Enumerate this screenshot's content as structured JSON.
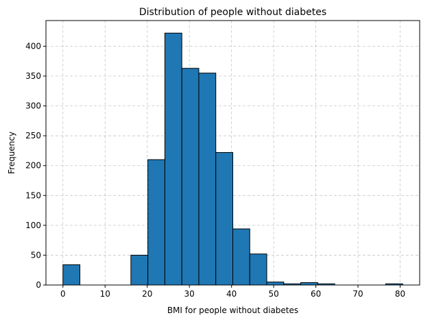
{
  "chart_data": {
    "type": "bar",
    "title": "Distribution of people without diabetes",
    "xlabel": "BMI for people without diabetes",
    "ylabel": "Frequency",
    "bin_edges": [
      0,
      4.03,
      8.06,
      12.09,
      16.12,
      20.15,
      24.18,
      28.21,
      32.24,
      36.27,
      40.3,
      44.33,
      48.36,
      52.39,
      56.42,
      60.45,
      64.48,
      68.51,
      72.54,
      76.57,
      80.6
    ],
    "values": [
      34,
      0,
      0,
      0,
      50,
      210,
      422,
      363,
      355,
      222,
      94,
      52,
      5,
      2,
      4,
      2,
      0,
      0,
      0,
      2
    ],
    "xlim": [
      -4.03,
      84.63
    ],
    "ylim": [
      0,
      443
    ],
    "xticks": [
      0,
      10,
      20,
      30,
      40,
      50,
      60,
      70,
      80
    ],
    "yticks": [
      0,
      50,
      100,
      150,
      200,
      250,
      300,
      350,
      400
    ],
    "grid": true,
    "bar_color": "#1f77b4",
    "edge_color": "#000000"
  }
}
